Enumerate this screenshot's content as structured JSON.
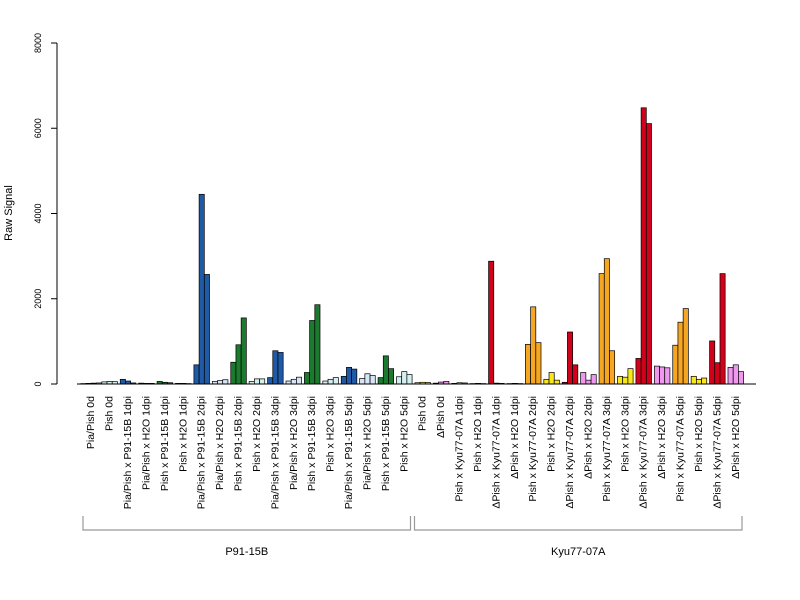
{
  "chart_data": {
    "type": "bar",
    "title": "",
    "xlabel": "",
    "ylabel": "Raw Signal",
    "ylim": [
      0,
      8000
    ],
    "yticks": [
      0,
      2000,
      4000,
      6000,
      8000
    ],
    "grid": false,
    "legend": "none",
    "colors": {
      "dark_blue": "#1f5aa6",
      "dark_green": "#1b7a2e",
      "red": "#d0021b",
      "orange": "#f5a623",
      "yellow": "#f8e71c",
      "pink": "#ee99ee",
      "light_cyan": "#d4efef",
      "light_blue": "#d6e6f5",
      "outline": "#000000"
    },
    "categories": [
      {
        "label": "Pia/Pish 0d",
        "group": "P91-15B",
        "color": "light_blue",
        "values": [
          10,
          15,
          20,
          25
        ]
      },
      {
        "label": "Pish 0d",
        "group": "P91-15B",
        "color": "light_cyan",
        "values": [
          50,
          60,
          55
        ]
      },
      {
        "label": "Pia/Pish x P91-15B 1dpi",
        "group": "P91-15B",
        "color": "dark_blue",
        "values": [
          110,
          70,
          25
        ]
      },
      {
        "label": "Pia/Pish x H2O 1dpi",
        "group": "P91-15B",
        "color": "light_blue",
        "values": [
          20,
          15,
          15
        ]
      },
      {
        "label": "Pish x P91-15B 1dpi",
        "group": "P91-15B",
        "color": "dark_green",
        "values": [
          60,
          40,
          30
        ]
      },
      {
        "label": "Pish x H2O 1dpi",
        "group": "P91-15B",
        "color": "light_cyan",
        "values": [
          15,
          15,
          10
        ]
      },
      {
        "label": "Pia/Pish x P91-15B 2dpi",
        "group": "P91-15B",
        "color": "dark_blue",
        "values": [
          450,
          4450,
          2570
        ]
      },
      {
        "label": "Pia/Pish x H2O 2dpi",
        "group": "P91-15B",
        "color": "light_blue",
        "values": [
          60,
          80,
          100
        ]
      },
      {
        "label": "Pish x P91-15B 2dpi",
        "group": "P91-15B",
        "color": "dark_green",
        "values": [
          510,
          920,
          1550
        ]
      },
      {
        "label": "Pish x H2O 2dpi",
        "group": "P91-15B",
        "color": "light_cyan",
        "values": [
          60,
          120,
          120
        ]
      },
      {
        "label": "Pia/Pish x P91-15B 3dpi",
        "group": "P91-15B",
        "color": "dark_blue",
        "values": [
          150,
          780,
          740
        ]
      },
      {
        "label": "Pia/Pish x H2O 3dpi",
        "group": "P91-15B",
        "color": "light_blue",
        "values": [
          70,
          110,
          160
        ]
      },
      {
        "label": "Pish x P91-15B 3dpi",
        "group": "P91-15B",
        "color": "dark_green",
        "values": [
          270,
          1490,
          1860
        ]
      },
      {
        "label": "Pish x H2O 3dpi",
        "group": "P91-15B",
        "color": "light_cyan",
        "values": [
          70,
          110,
          150
        ]
      },
      {
        "label": "Pia/Pish x P91-15B 5dpi",
        "group": "P91-15B",
        "color": "dark_blue",
        "values": [
          180,
          390,
          350
        ]
      },
      {
        "label": "Pia/Pish x H2O 5dpi",
        "group": "P91-15B",
        "color": "light_blue",
        "values": [
          130,
          240,
          200
        ]
      },
      {
        "label": "Pish x P91-15B 5dpi",
        "group": "P91-15B",
        "color": "dark_green",
        "values": [
          150,
          660,
          360
        ]
      },
      {
        "label": "Pish x H2O 5dpi",
        "group": "P91-15B",
        "color": "light_cyan",
        "values": [
          170,
          290,
          220
        ]
      },
      {
        "label": "Pish 0d",
        "group": "Kyu77-07A",
        "color": "yellow",
        "values": [
          30,
          40,
          35
        ]
      },
      {
        "label": "ΔPish 0d",
        "group": "Kyu77-07A",
        "color": "pink",
        "values": [
          20,
          45,
          60
        ]
      },
      {
        "label": "Pish x Kyu77-07A 1dpi",
        "group": "Kyu77-07A",
        "color": "orange",
        "values": [
          15,
          30,
          25
        ]
      },
      {
        "label": "Pish x H2O 1dpi",
        "group": "Kyu77-07A",
        "color": "yellow",
        "values": [
          10,
          15,
          10
        ]
      },
      {
        "label": "ΔPish x Kyu77-07A 1dpi",
        "group": "Kyu77-07A",
        "color": "red",
        "values": [
          2880,
          20,
          15
        ]
      },
      {
        "label": "ΔPish x H2O 1dpi",
        "group": "Kyu77-07A",
        "color": "pink",
        "values": [
          10,
          15,
          10
        ]
      },
      {
        "label": "Pish x Kyu77-07A 2dpi",
        "group": "Kyu77-07A",
        "color": "orange",
        "values": [
          930,
          1810,
          970
        ]
      },
      {
        "label": "Pish x H2O 2dpi",
        "group": "Kyu77-07A",
        "color": "yellow",
        "values": [
          110,
          270,
          90
        ]
      },
      {
        "label": "ΔPish x Kyu77-07A 2dpi",
        "group": "Kyu77-07A",
        "color": "red",
        "values": [
          40,
          1220,
          450
        ]
      },
      {
        "label": "ΔPish x H2O 2dpi",
        "group": "Kyu77-07A",
        "color": "pink",
        "values": [
          270,
          90,
          220
        ]
      },
      {
        "label": "Pish x Kyu77-07A 3dpi",
        "group": "Kyu77-07A",
        "color": "orange",
        "values": [
          2590,
          2940,
          780
        ]
      },
      {
        "label": "Pish x H2O 3dpi",
        "group": "Kyu77-07A",
        "color": "yellow",
        "values": [
          180,
          160,
          360
        ]
      },
      {
        "label": "ΔPish x Kyu77-07A 3dpi",
        "group": "Kyu77-07A",
        "color": "red",
        "values": [
          600,
          6480,
          6110
        ]
      },
      {
        "label": "ΔPish x H2O 3dpi",
        "group": "Kyu77-07A",
        "color": "pink",
        "values": [
          420,
          400,
          380
        ]
      },
      {
        "label": "Pish x Kyu77-07A 5dpi",
        "group": "Kyu77-07A",
        "color": "orange",
        "values": [
          910,
          1450,
          1770
        ]
      },
      {
        "label": "Pish x H2O 5dpi",
        "group": "Kyu77-07A",
        "color": "yellow",
        "values": [
          180,
          110,
          140
        ]
      },
      {
        "label": "ΔPish x Kyu77-07A 5dpi",
        "group": "Kyu77-07A",
        "color": "red",
        "values": [
          1010,
          500,
          2590
        ]
      },
      {
        "label": "ΔPish x H2O 5dpi",
        "group": "Kyu77-07A",
        "color": "pink",
        "values": [
          390,
          450,
          290
        ]
      }
    ],
    "groups": [
      {
        "label": "P91-15B"
      },
      {
        "label": "Kyu77-07A"
      }
    ]
  }
}
